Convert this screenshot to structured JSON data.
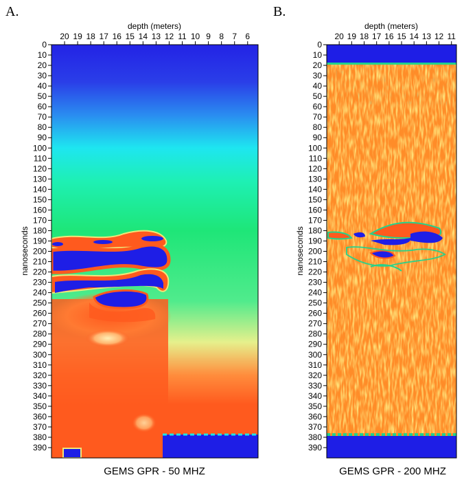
{
  "chart_data": [
    {
      "type": "heatmap",
      "panel_label": "A.",
      "title": "GEMS GPR - 50 MHZ",
      "xlabel": "depth (meters)",
      "ylabel": "nanoseconds",
      "x_ticks": [
        "20",
        "19",
        "18",
        "17",
        "16",
        "15",
        "14",
        "13",
        "12",
        "11",
        "10",
        "9",
        "8",
        "7",
        "6"
      ],
      "y_ticks": [
        "0",
        "10",
        "20",
        "30",
        "40",
        "50",
        "60",
        "70",
        "80",
        "90",
        "100",
        "110",
        "120",
        "130",
        "140",
        "150",
        "160",
        "170",
        "180",
        "190",
        "200",
        "210",
        "220",
        "230",
        "240",
        "250",
        "260",
        "270",
        "280",
        "290",
        "300",
        "310",
        "320",
        "330",
        "340",
        "350",
        "360",
        "370",
        "380",
        "390"
      ],
      "xlim": [
        21,
        5.2
      ],
      "ylim": [
        0,
        400
      ],
      "colors": {
        "low": "#1e1ee6",
        "mid_low": "#19e6e6",
        "mid": "#1ee678",
        "mid_high": "#f0e678",
        "high": "#ff5a1e"
      }
    },
    {
      "type": "heatmap",
      "panel_label": "B.",
      "title": "GEMS GPR - 200 MHZ",
      "xlabel": "depth (meters)",
      "ylabel": "nanoseconds",
      "x_ticks": [
        "20",
        "19",
        "18",
        "17",
        "16",
        "15",
        "14",
        "13",
        "12",
        "11"
      ],
      "y_ticks": [
        "0",
        "10",
        "20",
        "30",
        "40",
        "50",
        "60",
        "70",
        "80",
        "90",
        "100",
        "110",
        "120",
        "130",
        "140",
        "150",
        "160",
        "170",
        "180",
        "190",
        "200",
        "210",
        "220",
        "230",
        "240",
        "250",
        "260",
        "270",
        "280",
        "290",
        "300",
        "310",
        "320",
        "330",
        "340",
        "350",
        "360",
        "370",
        "380",
        "390"
      ],
      "xlim": [
        21,
        10.6
      ],
      "ylim": [
        0,
        400
      ],
      "colors": {
        "low": "#1e1ee6",
        "mid": "#23d28c",
        "high": "#ff6e1e",
        "alt": "#ffc832"
      }
    }
  ]
}
